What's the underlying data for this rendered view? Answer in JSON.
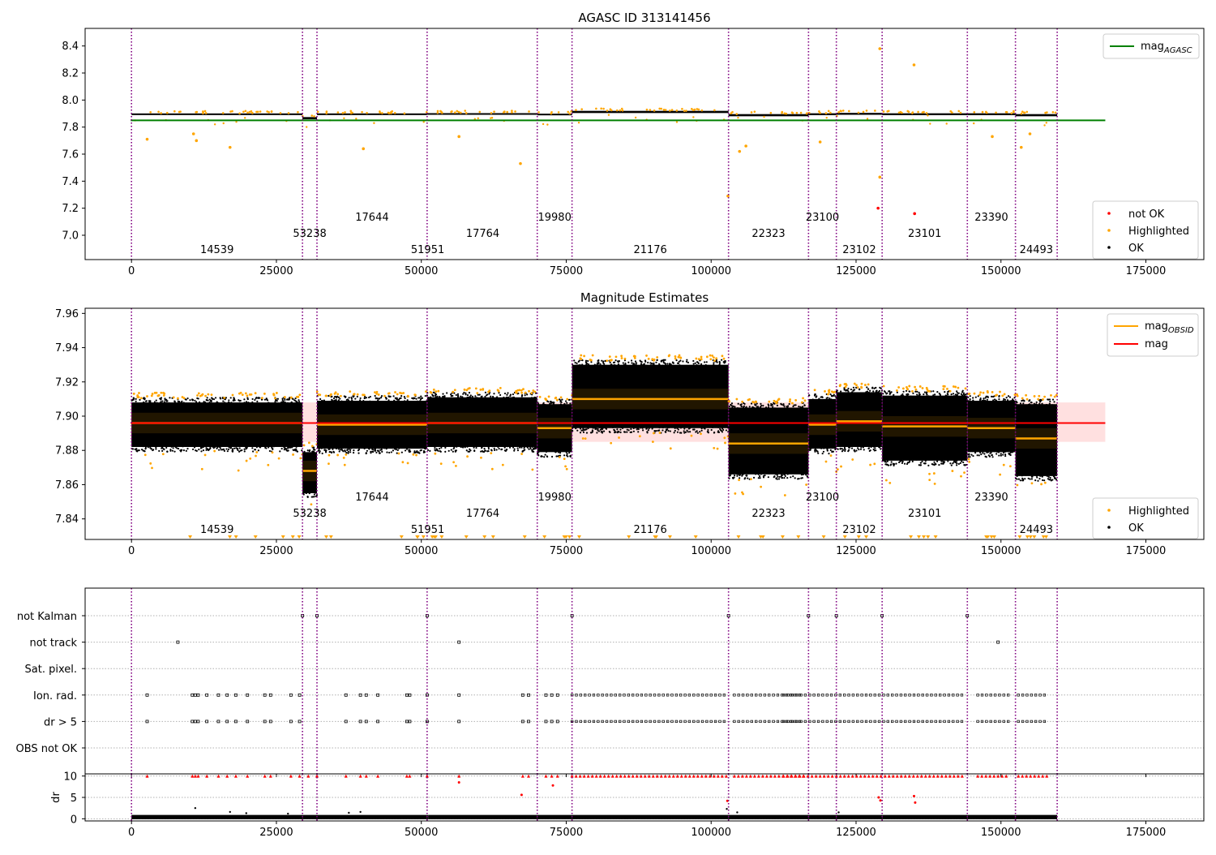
{
  "chart_data": [
    {
      "type": "scatter",
      "title": "AGASC ID 313141456",
      "xlabel": "",
      "ylabel": "",
      "xlim": [
        -8000,
        185000
      ],
      "ylim": [
        6.82,
        8.53
      ],
      "xticks": [
        0,
        25000,
        50000,
        75000,
        100000,
        125000,
        150000,
        175000
      ],
      "yticks": [
        7.0,
        7.2,
        7.4,
        7.6,
        7.8,
        8.0,
        8.2,
        8.4
      ],
      "grid": false,
      "legend_lines": {
        "position": "top-right",
        "entries": [
          {
            "label": "mag",
            "sub": "AGASC",
            "color": "#008000"
          }
        ]
      },
      "legend_points": {
        "position": "bottom-right",
        "entries": [
          {
            "label": "not OK",
            "color": "#ff0000"
          },
          {
            "label": "Highlighted",
            "color": "#ffa500"
          },
          {
            "label": "OK",
            "color": "#000000"
          }
        ]
      },
      "mag_agasc": 7.85,
      "segments": [
        {
          "start": 0,
          "end": 29500,
          "level": 7.895,
          "spread": 0.006
        },
        {
          "start": 29500,
          "end": 32000,
          "level": 7.866,
          "spread": 0.008
        },
        {
          "start": 32000,
          "end": 51000,
          "level": 7.895,
          "spread": 0.006
        },
        {
          "start": 51000,
          "end": 70000,
          "level": 7.897,
          "spread": 0.006
        },
        {
          "start": 70000,
          "end": 76000,
          "level": 7.893,
          "spread": 0.006
        },
        {
          "start": 76000,
          "end": 103000,
          "level": 7.912,
          "spread": 0.008
        },
        {
          "start": 103000,
          "end": 116800,
          "level": 7.888,
          "spread": 0.008
        },
        {
          "start": 116800,
          "end": 121600,
          "level": 7.895,
          "spread": 0.007
        },
        {
          "start": 121600,
          "end": 129500,
          "level": 7.898,
          "spread": 0.007
        },
        {
          "start": 129500,
          "end": 144200,
          "level": 7.895,
          "spread": 0.007
        },
        {
          "start": 144200,
          "end": 152500,
          "level": 7.895,
          "spread": 0.007
        },
        {
          "start": 152500,
          "end": 159700,
          "level": 7.888,
          "spread": 0.008
        }
      ],
      "outliers": [
        {
          "x": 2700,
          "y": 7.71
        },
        {
          "x": 10700,
          "y": 7.75
        },
        {
          "x": 11200,
          "y": 7.7
        },
        {
          "x": 17000,
          "y": 7.65
        },
        {
          "x": 40000,
          "y": 7.64
        },
        {
          "x": 56500,
          "y": 7.73
        },
        {
          "x": 67100,
          "y": 7.53
        },
        {
          "x": 102900,
          "y": 7.29
        },
        {
          "x": 104900,
          "y": 7.62
        },
        {
          "x": 106000,
          "y": 7.66
        },
        {
          "x": 118800,
          "y": 7.69
        },
        {
          "x": 129100,
          "y": 8.38
        },
        {
          "x": 129100,
          "y": 7.43
        },
        {
          "x": 135000,
          "y": 8.26
        },
        {
          "x": 148500,
          "y": 7.73
        },
        {
          "x": 153500,
          "y": 7.65
        },
        {
          "x": 155000,
          "y": 7.75
        }
      ],
      "not_ok_points": [
        {
          "x": 128800,
          "y": 7.2
        },
        {
          "x": 135100,
          "y": 7.16
        }
      ]
    },
    {
      "type": "scatter",
      "title": "Magnitude Estimates",
      "xlabel": "",
      "ylabel": "",
      "xlim": [
        -8000,
        185000
      ],
      "ylim": [
        7.828,
        7.963
      ],
      "xticks": [
        0,
        25000,
        50000,
        75000,
        100000,
        125000,
        150000,
        175000
      ],
      "yticks": [
        7.84,
        7.86,
        7.88,
        7.9,
        7.92,
        7.94,
        7.96
      ],
      "grid": false,
      "legend_lines": {
        "position": "top-right",
        "entries": [
          {
            "label": "mag",
            "sub": "OBSID",
            "color": "#ffa500"
          },
          {
            "label": "mag",
            "sub": "",
            "color": "#ff0000"
          }
        ]
      },
      "legend_points": {
        "position": "bottom-right",
        "entries": [
          {
            "label": "Highlighted",
            "color": "#ffa500"
          },
          {
            "label": "OK",
            "color": "#000000"
          }
        ]
      },
      "mag": 7.896,
      "mag_band": [
        7.885,
        7.908
      ],
      "obsid_mags": [
        {
          "start": 0,
          "end": 29500,
          "mag": 7.896,
          "lo": 7.882,
          "hi": 7.908
        },
        {
          "start": 29500,
          "end": 32000,
          "mag": 7.868,
          "lo": 7.855,
          "hi": 7.879
        },
        {
          "start": 32000,
          "end": 51000,
          "mag": 7.895,
          "lo": 7.881,
          "hi": 7.909
        },
        {
          "start": 51000,
          "end": 70000,
          "mag": 7.896,
          "lo": 7.882,
          "hi": 7.911
        },
        {
          "start": 70000,
          "end": 76000,
          "mag": 7.893,
          "lo": 7.879,
          "hi": 7.907
        },
        {
          "start": 76000,
          "end": 103000,
          "mag": 7.91,
          "lo": 7.893,
          "hi": 7.93
        },
        {
          "start": 103000,
          "end": 116800,
          "mag": 7.884,
          "lo": 7.866,
          "hi": 7.905
        },
        {
          "start": 116800,
          "end": 121600,
          "mag": 7.895,
          "lo": 7.881,
          "hi": 7.91
        },
        {
          "start": 121600,
          "end": 129500,
          "mag": 7.897,
          "lo": 7.882,
          "hi": 7.914
        },
        {
          "start": 129500,
          "end": 144200,
          "mag": 7.894,
          "lo": 7.874,
          "hi": 7.912
        },
        {
          "start": 144200,
          "end": 152500,
          "mag": 7.893,
          "lo": 7.879,
          "hi": 7.909
        },
        {
          "start": 152500,
          "end": 159700,
          "mag": 7.887,
          "lo": 7.865,
          "hi": 7.907
        }
      ]
    },
    {
      "type": "scatter",
      "title": "",
      "xlabel": "",
      "ylabel": "",
      "xlim": [
        -8000,
        185000
      ],
      "xticks": [
        0,
        25000,
        50000,
        75000,
        100000,
        125000,
        150000,
        175000
      ],
      "categories": [
        "not Kalman",
        "not track",
        "Sat. pixel.",
        "Ion. rad.",
        "dr > 5",
        "OBS not OK"
      ],
      "grid": true,
      "flags": {
        "not Kalman": [
          29500,
          32000,
          51000,
          76000,
          103000,
          116800,
          121600,
          129500,
          144200
        ],
        "not track": [
          8000,
          56500,
          149500
        ],
        "Sat. pixel.": [],
        "Ion. rad.": [
          2700,
          10500,
          11000,
          11500,
          13000,
          15000,
          16500,
          18000,
          20000,
          23000,
          24000,
          27500,
          29000,
          37000,
          39500,
          40500,
          42500,
          47500,
          48000,
          51000,
          56500,
          67500,
          68500,
          71500,
          72500,
          73500
        ],
        "dr > 5": [
          2700,
          10500,
          11000,
          11500,
          13000,
          15000,
          16500,
          18000,
          20000,
          23000,
          24000,
          27500,
          29000,
          37000,
          39500,
          40500,
          42500,
          47500,
          48000,
          51000,
          56500,
          67500,
          68500,
          71500,
          72500,
          73500
        ],
        "OBS not OK": []
      },
      "flag_bands": [
        {
          "start": 76000,
          "end": 103000
        },
        {
          "start": 104000,
          "end": 116000
        },
        {
          "start": 112500,
          "end": 144000
        },
        {
          "start": 146000,
          "end": 151500
        },
        {
          "start": 153000,
          "end": 158000
        }
      ]
    },
    {
      "type": "scatter",
      "title": "",
      "xlabel": "",
      "ylabel": "dr",
      "xlim": [
        -8000,
        185000
      ],
      "ylim": [
        -0.5,
        10.5
      ],
      "yticks": [
        0,
        5,
        10
      ],
      "xticks": [
        0,
        25000,
        50000,
        75000,
        100000,
        125000,
        150000,
        175000
      ],
      "grid": true,
      "dr_clip": 10,
      "dr_red_points": [
        {
          "x": 56500,
          "y": 8.5
        },
        {
          "x": 67300,
          "y": 5.6
        },
        {
          "x": 72700,
          "y": 7.8
        },
        {
          "x": 102800,
          "y": 4.2
        },
        {
          "x": 128900,
          "y": 5
        },
        {
          "x": 129200,
          "y": 4.3
        },
        {
          "x": 135000,
          "y": 5.3
        },
        {
          "x": 135200,
          "y": 3.8
        }
      ],
      "dr_black_points": [
        {
          "x": 11000,
          "y": 2.5
        },
        {
          "x": 17000,
          "y": 1.6
        },
        {
          "x": 19800,
          "y": 1.3
        },
        {
          "x": 27000,
          "y": 1.2
        },
        {
          "x": 37500,
          "y": 1.4
        },
        {
          "x": 39500,
          "y": 1.6
        },
        {
          "x": 102700,
          "y": 2.3
        },
        {
          "x": 104500,
          "y": 1.5
        },
        {
          "x": 122000,
          "y": 1.5
        }
      ]
    }
  ],
  "obsids": [
    {
      "id": "14539",
      "start": 0,
      "end": 29500,
      "row": 3
    },
    {
      "id": "53238",
      "start": 29500,
      "end": 32000,
      "row": 2
    },
    {
      "id": "17644",
      "start": 32000,
      "end": 51000,
      "row": 1
    },
    {
      "id": "51951",
      "start": 51000,
      "end": 51200,
      "row": 3
    },
    {
      "id": "17764",
      "start": 51200,
      "end": 70000,
      "row": 2
    },
    {
      "id": "19980",
      "start": 70000,
      "end": 76000,
      "row": 1
    },
    {
      "id": "21176",
      "start": 76000,
      "end": 103000,
      "row": 3
    },
    {
      "id": "22323",
      "start": 103000,
      "end": 116800,
      "row": 2
    },
    {
      "id": "23100",
      "start": 116800,
      "end": 121600,
      "row": 1
    },
    {
      "id": "23102",
      "start": 121600,
      "end": 129500,
      "row": 3
    },
    {
      "id": "23101",
      "start": 129500,
      "end": 144200,
      "row": 2
    },
    {
      "id": "23390",
      "start": 144200,
      "end": 152500,
      "row": 1
    },
    {
      "id": "24493",
      "start": 152500,
      "end": 159700,
      "row": 3
    }
  ],
  "boundaries": [
    0,
    29500,
    32000,
    51000,
    70000,
    76000,
    103000,
    116800,
    121600,
    129500,
    144200,
    152500,
    159700
  ],
  "colors": {
    "ok": "#000000",
    "highlighted": "#ffa500",
    "not_ok": "#ff0000",
    "mag_agasc": "#008000",
    "mag_obsid": "#ffa500",
    "mag": "#ff0000",
    "boundary": "#800080"
  }
}
